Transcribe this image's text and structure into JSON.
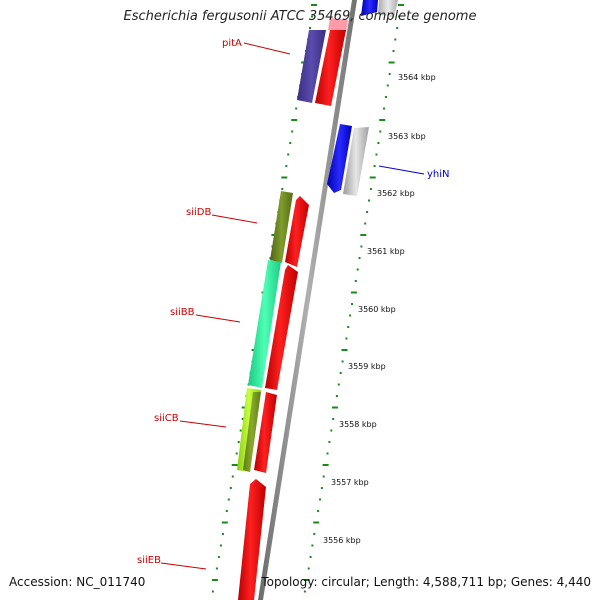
{
  "title": "Escherichia fergusonii ATCC 35469, complete genome",
  "footer": {
    "accession": "Accession: NC_011740",
    "topology": "Topology: circular; Length: 4,588,711 bp; Genes: 4,440"
  },
  "ticks": [
    "3564 kbp",
    "3563 kbp",
    "3562 kbp",
    "3561 kbp",
    "3560 kbp",
    "3559 kbp",
    "3558 kbp",
    "3557 kbp",
    "3556 kbp"
  ],
  "genes": [
    {
      "name": "pitA",
      "label_color": "#cc0000"
    },
    {
      "name": "yhiN",
      "label_color": "#0000cc"
    },
    {
      "name": "siiDB",
      "label_color": "#cc0000"
    },
    {
      "name": "siiBB",
      "label_color": "#cc0000"
    },
    {
      "name": "siiCB",
      "label_color": "#cc0000"
    },
    {
      "name": "siiEB",
      "label_color": "#cc0000"
    }
  ],
  "colors": {
    "cds": "#ff0000",
    "backbone": "#888888",
    "tick": "#1a8a1a",
    "pitA": "#4b3c9a",
    "yhiN_forward": "#1010ee",
    "yhiN_grey": "#c8c8c8",
    "siiDB": "#6e8a20",
    "siiBB": "#30f0a0",
    "siiCB": "#a8f020"
  }
}
